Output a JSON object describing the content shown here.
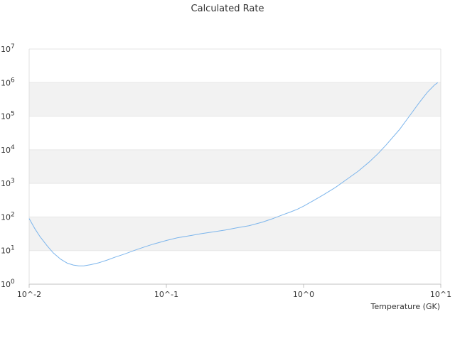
{
  "chart_data": {
    "type": "line",
    "title": "Calculated Rate",
    "xlabel": "Temperature (GK)",
    "ylabel": "",
    "x_scale": "log",
    "y_scale": "log",
    "xlim": [
      0.01,
      10
    ],
    "ylim": [
      1,
      10000000
    ],
    "x_tick_labels": [
      "10^-2",
      "10^-1",
      "10^0",
      "10^1"
    ],
    "y_tick_labels": [
      {
        "base": "10",
        "exp": "0"
      },
      {
        "base": "10",
        "exp": "1"
      },
      {
        "base": "10",
        "exp": "2"
      },
      {
        "base": "10",
        "exp": "3"
      },
      {
        "base": "10",
        "exp": "4"
      },
      {
        "base": "10",
        "exp": "5"
      },
      {
        "base": "10",
        "exp": "6"
      },
      {
        "base": "10",
        "exp": "7"
      }
    ],
    "grid": "alternating horizontal bands",
    "legend": "none",
    "colors": {
      "line": "#7cb5ec",
      "band": "#f2f2f2",
      "gridline": "#e6e6e6"
    },
    "series": [
      {
        "x": [
          0.01,
          0.011,
          0.012,
          0.0135,
          0.015,
          0.017,
          0.019,
          0.021,
          0.023,
          0.025,
          0.028,
          0.032,
          0.037,
          0.042,
          0.05,
          0.06,
          0.07,
          0.08,
          0.1,
          0.12,
          0.15,
          0.18,
          0.22,
          0.27,
          0.33,
          0.4,
          0.5,
          0.6,
          0.7,
          0.8,
          0.9,
          1.0,
          1.2,
          1.4,
          1.7,
          2.0,
          2.5,
          3.0,
          3.5,
          4.0,
          5.0,
          6.0,
          7.0,
          8.0,
          9.0,
          9.5
        ],
        "y": [
          90,
          45,
          26,
          14,
          8.5,
          5.5,
          4.2,
          3.7,
          3.5,
          3.5,
          3.8,
          4.3,
          5.2,
          6.3,
          8.0,
          10.5,
          13,
          15.5,
          20,
          24,
          28,
          32,
          36,
          41,
          48,
          55,
          70,
          90,
          115,
          140,
          170,
          210,
          320,
          460,
          750,
          1200,
          2300,
          4300,
          7800,
          14000,
          40000,
          110000,
          260000,
          520000,
          850000,
          1000000
        ]
      }
    ]
  }
}
